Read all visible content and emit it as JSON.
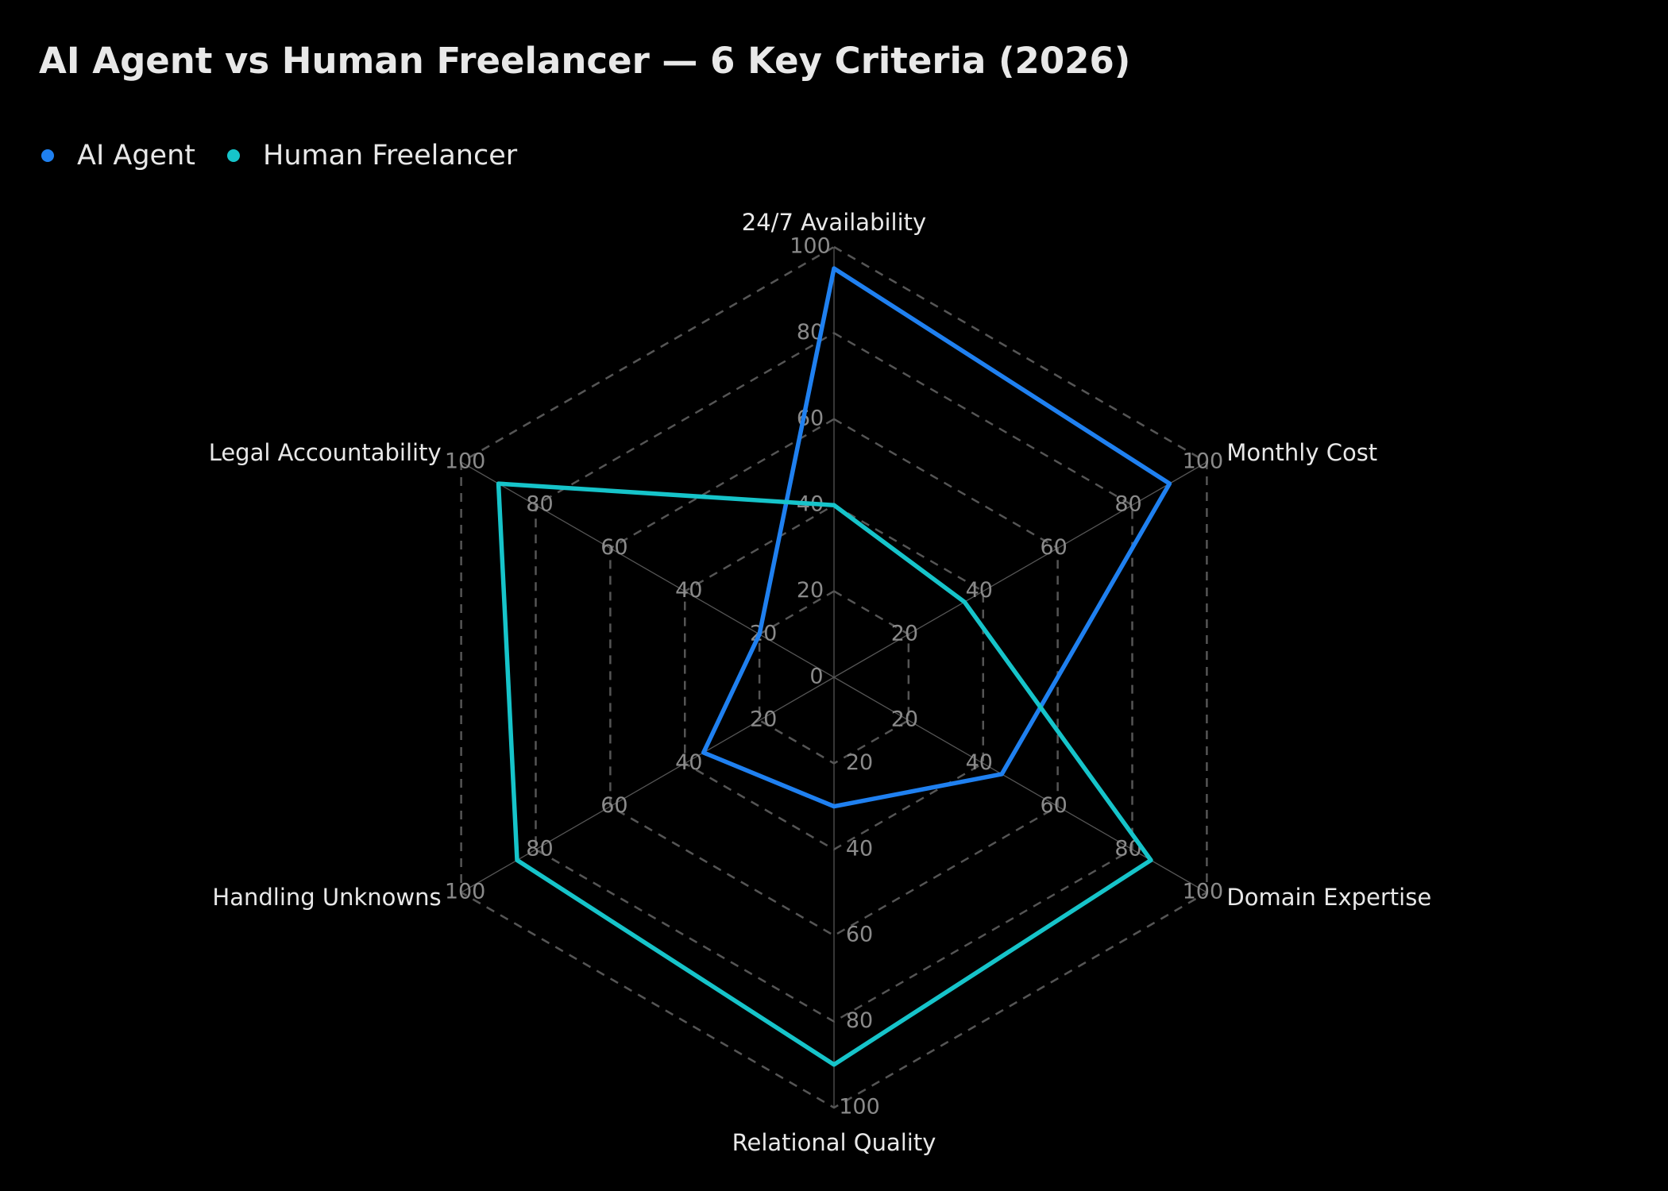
{
  "chart_data": {
    "type": "radar",
    "title": "AI Agent vs Human Freelancer — 6 Key Criteria (2026)",
    "categories": [
      "24/7 Availability",
      "Monthly Cost",
      "Domain Expertise",
      "Relational Quality",
      "Handling Unknowns",
      "Legal Accountability"
    ],
    "series": [
      {
        "name": "AI Agent",
        "color": "#1f80f0",
        "values": [
          95,
          90,
          45,
          30,
          35,
          20
        ]
      },
      {
        "name": "Human Freelancer",
        "color": "#16c4ca",
        "values": [
          40,
          35,
          85,
          90,
          85,
          90
        ]
      }
    ],
    "rlim": [
      0,
      100
    ],
    "rticks": [
      0,
      20,
      40,
      60,
      80,
      100
    ],
    "grid": true,
    "legend": "top-left"
  }
}
